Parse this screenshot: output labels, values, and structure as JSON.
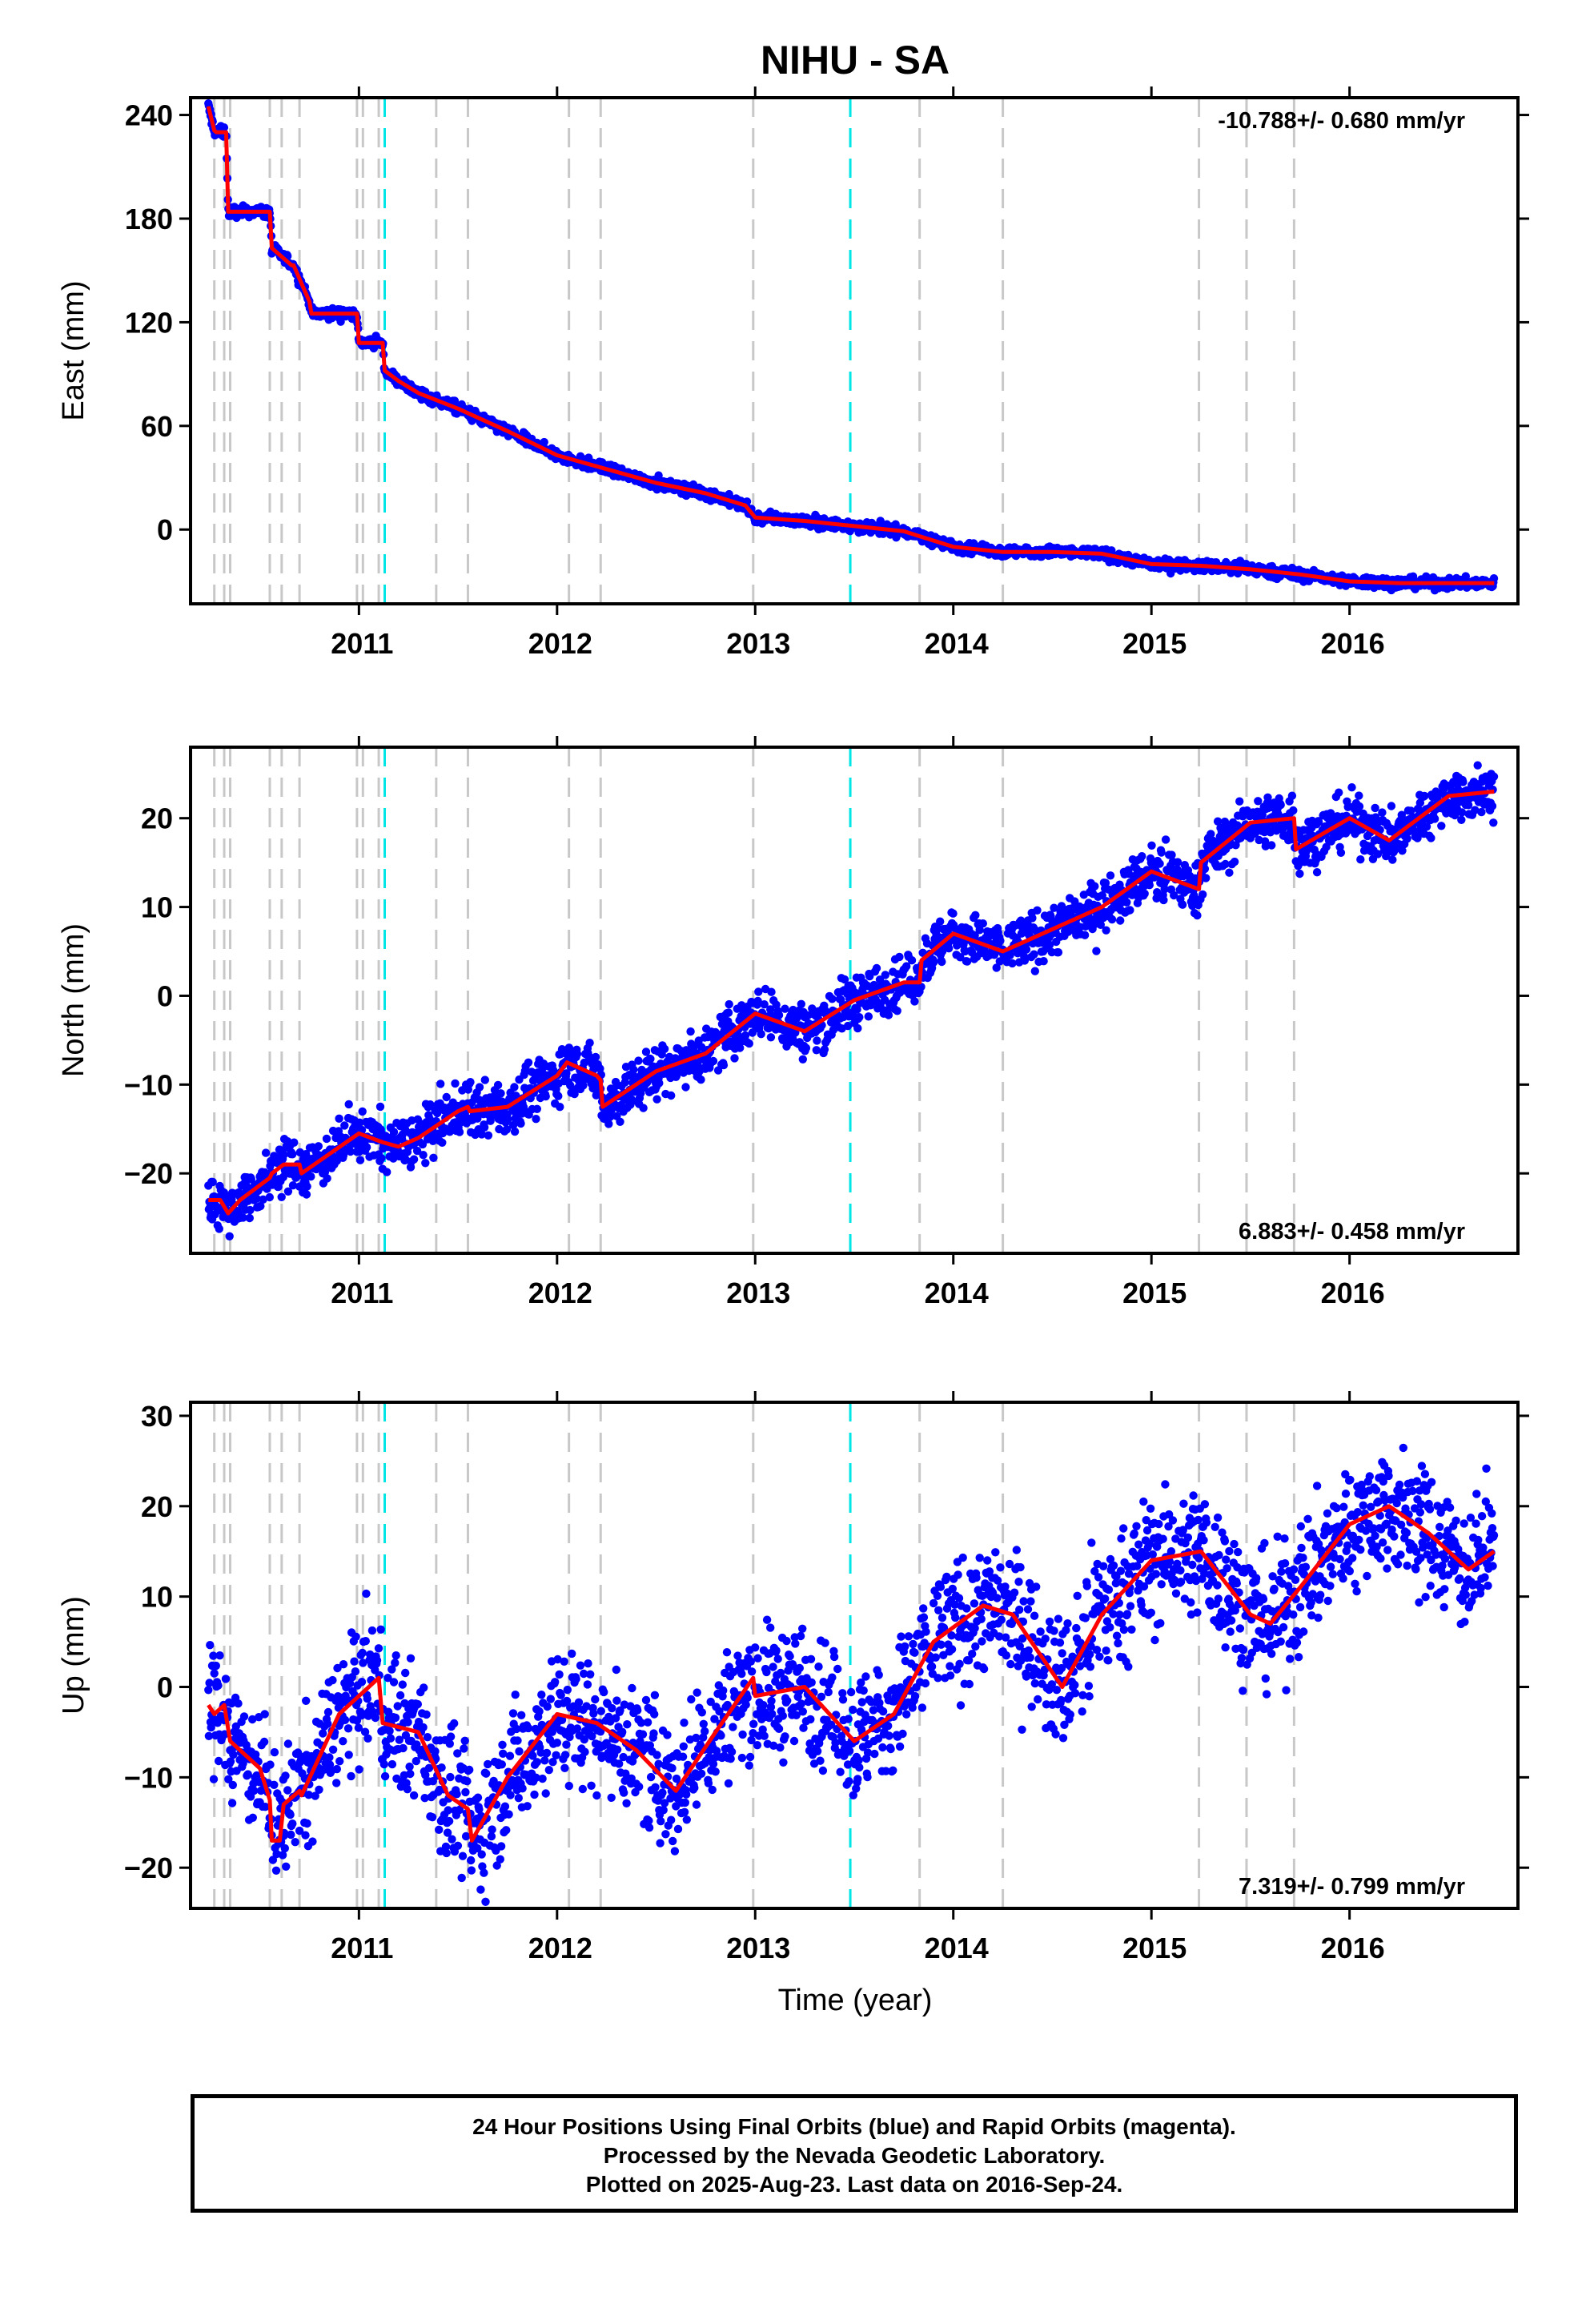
{
  "figure": {
    "title": "NIHU - SA",
    "xlabel": "Time (year)",
    "footer": [
      "24 Hour Positions Using Final Orbits (blue) and Rapid Orbits (magenta).",
      "Processed by the Nevada Geodetic Laboratory.",
      "Plotted on 2025-Aug-23. Last data on 2016-Sep-24."
    ]
  },
  "colors": {
    "points": "#0000ff",
    "model": "#ff0000",
    "equipment_change": "#c8c8c8",
    "earthquake": "#00e5e5"
  },
  "chart_data": [
    {
      "type": "scatter",
      "panel": "East",
      "ylabel": "East (mm)",
      "rate_text": "-10.788+/- 0.680 mm/yr",
      "xlim": [
        2010.15,
        2016.85
      ],
      "ylim": [
        -43,
        250
      ],
      "xticks": [
        2011,
        2012,
        2013,
        2014,
        2015,
        2016
      ],
      "yticks": [
        240,
        180,
        120,
        60,
        0
      ],
      "ytick_labels": [
        "240",
        "180",
        "120",
        "60",
        "0"
      ],
      "gray_dashed_lines": [
        2010.27,
        2010.32,
        2010.35,
        2010.55,
        2010.61,
        2010.7,
        2010.99,
        2011.02,
        2011.1,
        2011.39,
        2011.55,
        2012.06,
        2012.22,
        2012.99,
        2013.83,
        2014.25,
        2015.24,
        2015.48,
        2015.72
      ],
      "cyan_dashed_lines": [
        2011.13,
        2013.48
      ],
      "series": [
        {
          "x": [
            2010.24,
            2010.27,
            2010.28,
            2010.33,
            2010.34,
            2010.4,
            2010.55,
            2010.56,
            2010.66,
            2010.67,
            2010.75,
            2010.76,
            2010.99,
            2011.0,
            2011.12,
            2011.13,
            2011.2,
            2011.3,
            2011.5,
            2011.75,
            2012.0,
            2012.25,
            2012.5,
            2012.75,
            2012.95,
            2013.0,
            2013.25,
            2013.5,
            2013.75,
            2014.0,
            2014.25,
            2014.5,
            2014.75,
            2015.0,
            2015.25,
            2015.5,
            2015.75,
            2016.0,
            2016.25,
            2016.5,
            2016.73
          ],
          "y": [
            245,
            231,
            230,
            230,
            184,
            184,
            184,
            163,
            153,
            153,
            132,
            125,
            125,
            108,
            108,
            92,
            86,
            79,
            70,
            57,
            43,
            35,
            27,
            21,
            14,
            7,
            5,
            2,
            -1,
            -10,
            -13,
            -13,
            -14,
            -20,
            -21,
            -23,
            -26,
            -30,
            -31,
            -31,
            -31
          ]
        }
      ]
    },
    {
      "type": "scatter",
      "panel": "North",
      "ylabel": "North (mm)",
      "rate_text": "6.883+/- 0.458 mm/yr",
      "xlim": [
        2010.15,
        2016.85
      ],
      "ylim": [
        -29,
        28
      ],
      "xticks": [
        2011,
        2012,
        2013,
        2014,
        2015,
        2016
      ],
      "yticks": [
        20,
        10,
        0,
        -10,
        -20
      ],
      "ytick_labels": [
        "20",
        "10",
        "0",
        "−10",
        "−20"
      ],
      "gray_dashed_lines": [
        2010.27,
        2010.32,
        2010.35,
        2010.55,
        2010.61,
        2010.7,
        2010.99,
        2011.02,
        2011.1,
        2011.39,
        2011.55,
        2012.06,
        2012.22,
        2012.99,
        2013.83,
        2014.25,
        2015.24,
        2015.48,
        2015.72
      ],
      "cyan_dashed_lines": [
        2011.13,
        2013.48
      ],
      "series": [
        {
          "x": [
            2010.24,
            2010.3,
            2010.34,
            2010.4,
            2010.55,
            2010.56,
            2010.62,
            2010.7,
            2010.71,
            2011.0,
            2011.12,
            2011.2,
            2011.3,
            2011.5,
            2011.55,
            2011.56,
            2011.75,
            2012.0,
            2012.05,
            2012.2,
            2012.22,
            2012.23,
            2012.5,
            2012.75,
            2013.0,
            2013.25,
            2013.5,
            2013.75,
            2013.83,
            2013.84,
            2014.0,
            2014.25,
            2014.5,
            2014.75,
            2015.0,
            2015.24,
            2015.25,
            2015.5,
            2015.72,
            2015.73,
            2016.0,
            2016.2,
            2016.5,
            2016.73
          ],
          "y": [
            -23,
            -23,
            -24.5,
            -23,
            -20.5,
            -20,
            -19,
            -19,
            -20,
            -15.5,
            -16.5,
            -17,
            -16,
            -13,
            -12.5,
            -13,
            -12.5,
            -9,
            -7.5,
            -9,
            -9.5,
            -12.5,
            -8.5,
            -6.5,
            -2,
            -4,
            -0.5,
            1.5,
            1.5,
            4,
            7,
            5,
            7.5,
            10,
            14,
            12,
            15,
            19.5,
            20,
            16.5,
            20,
            17.5,
            22.5,
            23
          ]
        }
      ]
    },
    {
      "type": "scatter",
      "panel": "Up",
      "ylabel": "Up (mm)",
      "rate_text": "7.319+/- 0.799 mm/yr",
      "xlim": [
        2010.15,
        2016.85
      ],
      "ylim": [
        -24.5,
        31.5
      ],
      "xticks": [
        2011,
        2012,
        2013,
        2014,
        2015,
        2016
      ],
      "yticks": [
        30,
        20,
        10,
        0,
        -10,
        -20
      ],
      "ytick_labels": [
        "30",
        "20",
        "10",
        "0",
        "−10",
        "−20"
      ],
      "gray_dashed_lines": [
        2010.27,
        2010.32,
        2010.35,
        2010.55,
        2010.61,
        2010.7,
        2010.99,
        2011.02,
        2011.1,
        2011.39,
        2011.55,
        2012.06,
        2012.22,
        2012.99,
        2013.83,
        2014.25,
        2015.24,
        2015.48,
        2015.72
      ],
      "cyan_dashed_lines": [
        2011.13,
        2013.48
      ],
      "series": [
        {
          "x": [
            2010.24,
            2010.27,
            2010.32,
            2010.35,
            2010.5,
            2010.55,
            2010.56,
            2010.6,
            2010.62,
            2010.7,
            2010.71,
            2010.9,
            2011.1,
            2011.12,
            2011.3,
            2011.45,
            2011.55,
            2011.57,
            2011.75,
            2012.0,
            2012.2,
            2012.4,
            2012.6,
            2012.8,
            2012.99,
            2013.0,
            2013.25,
            2013.5,
            2013.7,
            2013.9,
            2014.15,
            2014.3,
            2014.55,
            2014.75,
            2015.0,
            2015.25,
            2015.5,
            2015.6,
            2015.75,
            2016.0,
            2016.2,
            2016.4,
            2016.6,
            2016.73
          ],
          "y": [
            -2,
            -3,
            -2,
            -6,
            -9,
            -12.5,
            -17,
            -17,
            -13,
            -11.5,
            -12,
            -3,
            1,
            -4,
            -5,
            -12,
            -13.5,
            -17,
            -10,
            -3,
            -4,
            -7,
            -11.5,
            -5,
            1,
            -1,
            0,
            -6,
            -3,
            5,
            9,
            8,
            0,
            8,
            14,
            15,
            8,
            7,
            11,
            18,
            20,
            17,
            13,
            15
          ]
        }
      ]
    }
  ]
}
